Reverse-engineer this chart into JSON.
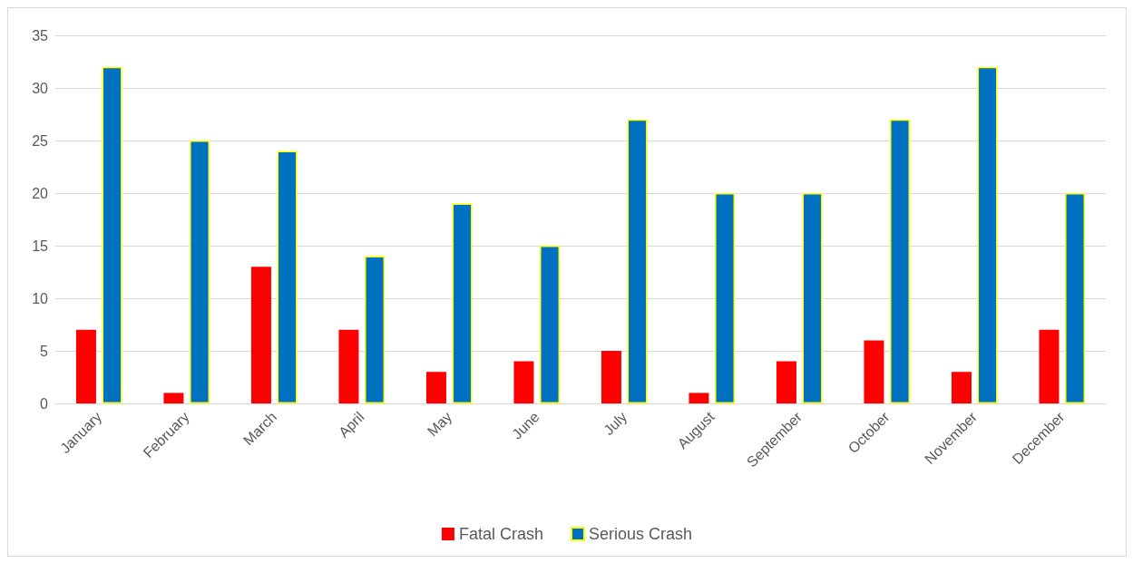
{
  "chart_data": {
    "type": "bar",
    "categories": [
      "January",
      "February",
      "March",
      "April",
      "May",
      "June",
      "July",
      "August",
      "September",
      "October",
      "November",
      "December"
    ],
    "series": [
      {
        "name": "Fatal Crash",
        "color": "#ff0000",
        "values": [
          7,
          1,
          13,
          7,
          3,
          4,
          5,
          1,
          4,
          6,
          3,
          7
        ]
      },
      {
        "name": "Serious Crash",
        "color": "#0070c0",
        "values": [
          32,
          25,
          24,
          14,
          19,
          15,
          27,
          20,
          20,
          27,
          32,
          20
        ]
      }
    ],
    "ylim": [
      0,
      35
    ],
    "yticks": [
      0,
      5,
      10,
      15,
      20,
      25,
      30,
      35
    ],
    "grid": "y",
    "legend": "bottom"
  }
}
